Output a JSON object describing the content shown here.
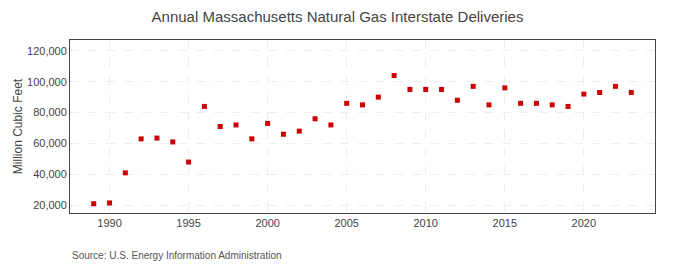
{
  "chart_data": {
    "type": "scatter",
    "title": "Annual Massachusetts Natural Gas Interstate Deliveries",
    "ylabel": "Million Cubic Feet",
    "source": "Source: U.S. Energy Information Administration",
    "x": [
      1989,
      1990,
      1991,
      1992,
      1993,
      1994,
      1995,
      1996,
      1997,
      1998,
      1999,
      2000,
      2001,
      2002,
      2003,
      2004,
      2005,
      2006,
      2007,
      2008,
      2009,
      2010,
      2011,
      2012,
      2013,
      2014,
      2015,
      2016,
      2017,
      2018,
      2019,
      2020,
      2021,
      2022,
      2023
    ],
    "values": [
      21000,
      21500,
      41000,
      63000,
      63500,
      61000,
      48000,
      84000,
      71000,
      72000,
      63000,
      73000,
      66000,
      68000,
      76000,
      72000,
      86000,
      85000,
      90000,
      104000,
      95000,
      95000,
      95000,
      88000,
      97000,
      85000,
      96000,
      86000,
      86000,
      85000,
      84000,
      92000,
      93000,
      97000,
      93000
    ],
    "color": "#cc0000",
    "marker": "square",
    "xlim": [
      1987.5,
      2024.5
    ],
    "xticks": [
      1990,
      1995,
      2000,
      2005,
      2010,
      2015,
      2020
    ],
    "ylim": [
      15000,
      127000
    ],
    "yticks": [
      {
        "value": 20000,
        "label": "20,000"
      },
      {
        "value": 40000,
        "label": "40,000"
      },
      {
        "value": 60000,
        "label": "60,000"
      },
      {
        "value": 80000,
        "label": "80,000"
      },
      {
        "value": 100000,
        "label": "100,000"
      },
      {
        "value": 120000,
        "label": "120,000"
      }
    ],
    "grid": true
  }
}
